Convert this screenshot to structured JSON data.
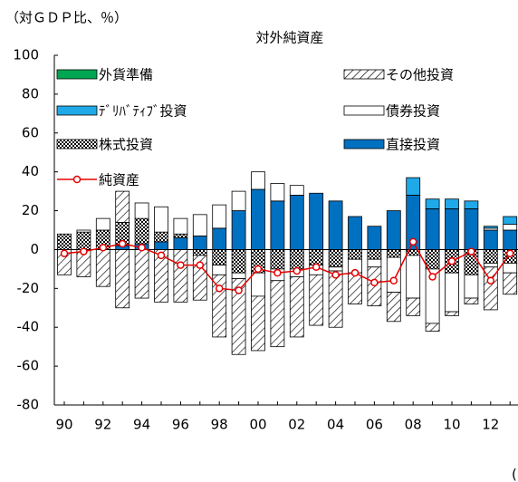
{
  "chart_data": {
    "type": "bar",
    "title": "対外純資産",
    "y_axis_label": "（対ＧＤＰ比、％）",
    "x_unit": "(",
    "categories": [
      "90",
      null,
      "92",
      null,
      "94",
      null,
      "96",
      null,
      "98",
      null,
      "00",
      null,
      "02",
      null,
      "04",
      null,
      "06",
      null,
      "08",
      null,
      "10",
      null,
      "12",
      null
    ],
    "ylim": [
      -80,
      100
    ],
    "yticks": [
      -80,
      -60,
      -40,
      -20,
      0,
      20,
      40,
      60,
      80,
      100
    ],
    "series": [
      {
        "name": "外貨準備",
        "color": "#00a651",
        "pattern": null,
        "values": [
          0,
          0,
          0,
          0,
          0,
          0,
          0,
          0,
          0,
          0,
          0,
          0,
          0,
          0,
          0,
          0,
          0,
          0,
          0,
          0,
          0,
          0,
          0,
          0
        ]
      },
      {
        "name": "その他投資",
        "color": "#ffffff",
        "pattern": "hatch",
        "values": [
          0,
          0,
          0,
          16,
          0,
          0,
          0,
          0,
          0,
          0,
          0,
          0,
          0,
          0,
          0,
          0,
          0,
          0,
          0,
          0,
          0,
          0,
          0,
          0
        ],
        "negative_values": [
          -13,
          -14,
          -19,
          -30,
          -25,
          -27,
          -27,
          -23,
          -32,
          -39,
          -28,
          -34,
          -31,
          -26,
          -29,
          -16,
          -20,
          -15,
          -9,
          -4,
          -2,
          -3,
          -22,
          -11
        ]
      },
      {
        "name": "ﾃﾞﾘﾊﾞﾃｨﾌﾞ投資",
        "color": "#1fa9e8",
        "pattern": null,
        "values": [
          0,
          0,
          0,
          0,
          0,
          0,
          0,
          0,
          0,
          0,
          0,
          0,
          0,
          0,
          0,
          0,
          0,
          0,
          9,
          5,
          5,
          4,
          1,
          4
        ]
      },
      {
        "name": "債券投資",
        "color": "#ffffff",
        "pattern": null,
        "values": [
          0,
          1,
          6,
          0,
          8,
          13,
          8,
          11,
          12,
          10,
          9,
          9,
          5,
          0,
          0,
          0,
          0,
          0,
          0,
          0,
          0,
          0,
          1,
          3
        ],
        "negative_values": [
          0,
          0,
          0,
          0,
          0,
          0,
          0,
          0,
          -5,
          -3,
          -12,
          -6,
          -4,
          -5,
          -2,
          -7,
          -4,
          -18,
          -22,
          -28,
          -20,
          -12,
          -2,
          -5
        ]
      },
      {
        "name": "株式投資",
        "color": "#ffffff",
        "pattern": "check",
        "values": [
          8,
          9,
          10,
          12,
          13,
          5,
          2,
          0,
          0,
          0,
          0,
          0,
          0,
          0,
          0,
          0,
          0,
          0,
          0,
          0,
          0,
          0,
          0,
          0
        ],
        "negative_values": [
          0,
          0,
          0,
          0,
          0,
          0,
          0,
          -3,
          -8,
          -12,
          -12,
          -10,
          -10,
          -8,
          -9,
          -5,
          -5,
          -4,
          -3,
          -10,
          -12,
          -13,
          -7,
          -7
        ]
      },
      {
        "name": "直接投資",
        "color": "#0070c0",
        "pattern": null,
        "values": [
          0,
          0,
          0,
          2,
          3,
          4,
          6,
          7,
          11,
          20,
          31,
          25,
          28,
          29,
          25,
          17,
          12,
          20,
          28,
          21,
          21,
          21,
          10,
          10
        ]
      },
      {
        "name": "純資産",
        "color": "#e60000",
        "line": true,
        "values": [
          -2,
          -1,
          1,
          3,
          1,
          -3,
          -8,
          -8,
          -20,
          -21,
          -10,
          -12,
          -11,
          -9,
          -13,
          -12,
          -17,
          -16,
          4,
          -14,
          -6,
          -1,
          -16,
          -2
        ]
      }
    ]
  }
}
